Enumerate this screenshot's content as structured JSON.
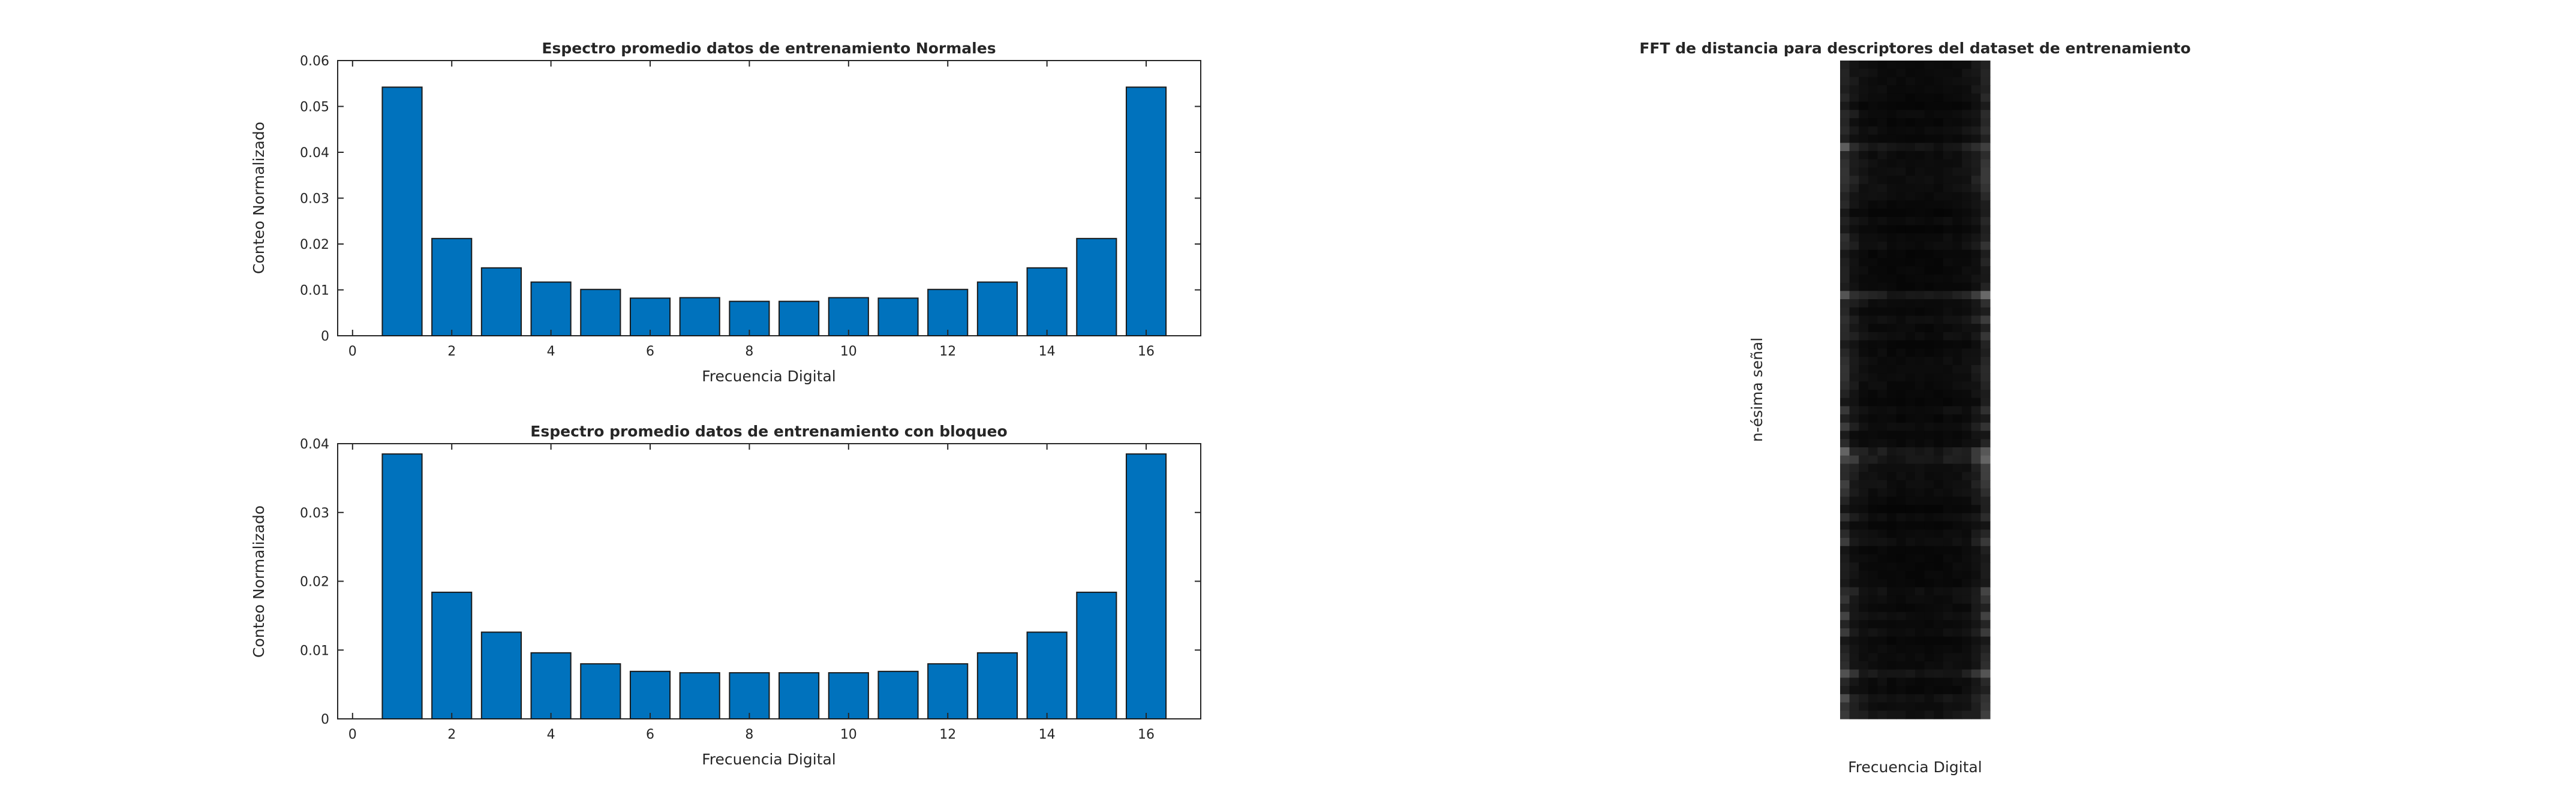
{
  "chart_data": [
    {
      "type": "bar",
      "title": "Espectro promedio datos de entrenamiento Normales",
      "xlabel": "Frecuencia Digital",
      "ylabel": "Conteo Normalizado",
      "x": [
        1,
        2,
        3,
        4,
        5,
        6,
        7,
        8,
        9,
        10,
        11,
        12,
        13,
        14,
        15,
        16
      ],
      "values": [
        0.0542,
        0.0212,
        0.0148,
        0.0117,
        0.0101,
        0.0082,
        0.0083,
        0.0075,
        0.0075,
        0.0083,
        0.0082,
        0.0101,
        0.0117,
        0.0148,
        0.0212,
        0.0542
      ],
      "xlim": [
        -0.3,
        17.1
      ],
      "ylim": [
        0,
        0.06
      ],
      "xticks": [
        0,
        2,
        4,
        6,
        8,
        10,
        12,
        14,
        16
      ],
      "yticks": [
        0,
        0.01,
        0.02,
        0.03,
        0.04,
        0.05,
        0.06
      ],
      "ytick_labels": [
        "0",
        "0.01",
        "0.02",
        "0.03",
        "0.04",
        "0.05",
        "0.06"
      ],
      "bar_color": "#0072bd",
      "grid": false
    },
    {
      "type": "bar",
      "title": "Espectro promedio datos de entrenamiento con bloqueo",
      "xlabel": "Frecuencia Digital",
      "ylabel": "Conteo Normalizado",
      "x": [
        1,
        2,
        3,
        4,
        5,
        6,
        7,
        8,
        9,
        10,
        11,
        12,
        13,
        14,
        15,
        16
      ],
      "values": [
        0.0385,
        0.0184,
        0.0126,
        0.0096,
        0.008,
        0.0069,
        0.0067,
        0.0067,
        0.0067,
        0.0067,
        0.0069,
        0.008,
        0.0096,
        0.0126,
        0.0184,
        0.0385
      ],
      "xlim": [
        -0.3,
        17.1
      ],
      "ylim": [
        0,
        0.04
      ],
      "xticks": [
        0,
        2,
        4,
        6,
        8,
        10,
        12,
        14,
        16
      ],
      "yticks": [
        0,
        0.01,
        0.02,
        0.03,
        0.04
      ],
      "ytick_labels": [
        "0",
        "0.01",
        "0.02",
        "0.03",
        "0.04"
      ],
      "bar_color": "#0072bd",
      "grid": false
    },
    {
      "type": "heatmap",
      "title": "FFT de distancia para descriptores del dataset de entrenamiento",
      "xlabel": "Frecuencia Digital",
      "ylabel": "n-ésima señal",
      "colormap": "gray",
      "rows": 80,
      "columns": 16,
      "column_profile": [
        0.16,
        0.09,
        0.06,
        0.05,
        0.05,
        0.04,
        0.04,
        0.04,
        0.04,
        0.04,
        0.04,
        0.05,
        0.05,
        0.06,
        0.09,
        0.16
      ]
    }
  ]
}
